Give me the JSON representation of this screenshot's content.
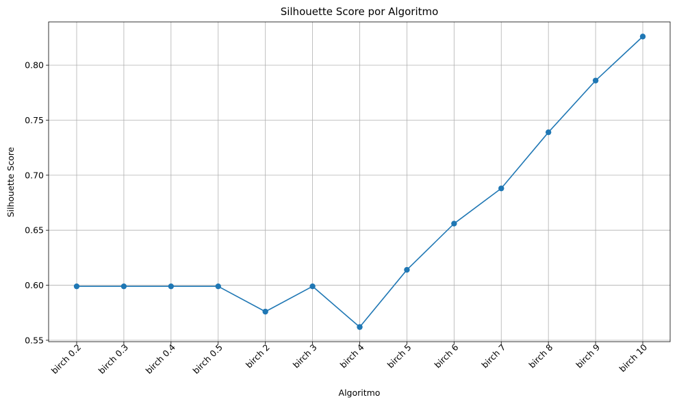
{
  "chart_data": {
    "type": "line",
    "title": "Silhouette Score por Algoritmo",
    "xlabel": "Algoritmo",
    "ylabel": "Silhouette Score",
    "categories": [
      "birch 0.2",
      "birch 0.3",
      "birch 0.4",
      "birch 0.5",
      "birch 2",
      "birch 3",
      "birch 4",
      "birch 5",
      "birch 6",
      "birch 7",
      "birch 8",
      "birch 9",
      "birch 10"
    ],
    "series": [
      {
        "values": [
          0.599,
          0.599,
          0.599,
          0.599,
          0.576,
          0.599,
          0.562,
          0.614,
          0.656,
          0.688,
          0.739,
          0.786,
          0.826
        ],
        "color": "#1f77b4",
        "marker": "circle"
      }
    ],
    "yticks": [
      "0.55",
      "0.60",
      "0.65",
      "0.70",
      "0.75",
      "0.80"
    ],
    "ylim": [
      0.5487,
      0.8393
    ],
    "grid": true,
    "x_tick_rotation": 45
  }
}
